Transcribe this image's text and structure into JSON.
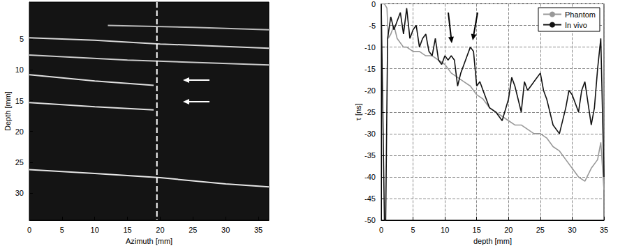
{
  "chart_data": [
    {
      "type": "line",
      "xlabel": "Azimuth [mm]",
      "ylabel": "Depth [mm]",
      "xlim": [
        0,
        36.6
      ],
      "ylim": [
        34.4,
        -1
      ],
      "xticks": [
        0,
        5,
        10,
        15,
        20,
        25,
        30,
        35
      ],
      "yticks": [
        5,
        10,
        15,
        20,
        25,
        30
      ],
      "grid": false,
      "series": [
        {
          "color": "#d8d8d8",
          "line_style": "solid",
          "x": [
            0,
            10,
            20,
            36.6
          ],
          "values": [
            4.8,
            5.2,
            5.8,
            6.5
          ]
        },
        {
          "color": "#bbbbbb",
          "line_style": "solid",
          "x": [
            12,
            25,
            36.6
          ],
          "values": [
            2.8,
            3.1,
            3.5
          ]
        },
        {
          "color": "#cccccc",
          "line_style": "solid",
          "x": [
            0,
            15,
            36.6
          ],
          "values": [
            7.6,
            8.4,
            9.2
          ]
        },
        {
          "color": "#e0e0e0",
          "line_style": "solid",
          "x": [
            0,
            10,
            19
          ],
          "values": [
            10.8,
            11.8,
            12.5
          ]
        },
        {
          "color": "#e0e0e0",
          "line_style": "solid",
          "x": [
            0,
            10,
            19
          ],
          "values": [
            15.3,
            16,
            16.5
          ]
        },
        {
          "color": "#e6e6e6",
          "line_style": "solid",
          "x": [
            0,
            10,
            20,
            30,
            36.6
          ],
          "values": [
            26.2,
            26.8,
            27.5,
            28.5,
            29
          ]
        },
        {
          "color": "#ffffff",
          "line_style": "dashed",
          "x": [
            19.5,
            19.5
          ],
          "values": [
            -1,
            34.4
          ]
        }
      ]
    },
    {
      "type": "line",
      "xlabel": "depth [mm]",
      "ylabel": "τ [ns]",
      "xlim": [
        0,
        35
      ],
      "ylim": [
        -50,
        0
      ],
      "xticks": [
        0,
        5,
        10,
        15,
        20,
        25,
        30,
        35
      ],
      "yticks": [
        -50,
        -45,
        -40,
        -35,
        -30,
        -25,
        -20,
        -15,
        -10,
        -5,
        0
      ],
      "grid": true,
      "legend": "upper right",
      "series": [
        {
          "name": "Phantom",
          "color": "#999999",
          "line_style": "solid",
          "x": [
            0,
            0.5,
            0.9,
            1.1,
            1.5,
            2,
            2.5,
            3,
            3.5,
            4,
            5,
            6,
            7,
            8,
            9,
            10,
            11,
            12,
            13,
            14,
            15,
            16,
            17,
            18,
            19,
            20,
            21,
            22,
            23,
            24,
            25,
            26,
            27,
            28,
            29,
            30,
            31,
            32,
            33,
            34,
            34.5,
            35
          ],
          "values": [
            0,
            0,
            -1,
            -8,
            -7,
            -5,
            -8,
            -9,
            -10,
            -10,
            -11,
            -11,
            -12,
            -12,
            -13,
            -14,
            -16,
            -17,
            -18,
            -19,
            -21,
            -22,
            -24,
            -25,
            -26,
            -27,
            -28,
            -28,
            -29,
            -30,
            -30,
            -31,
            -33,
            -34,
            -36,
            -38,
            -40,
            -41,
            -38,
            -36,
            -32,
            -43
          ]
        },
        {
          "name": "In vivo",
          "color": "#111111",
          "line_style": "solid",
          "x": [
            0,
            0.5,
            0.7,
            1,
            1.5,
            2,
            2.5,
            3,
            3.5,
            4,
            4.5,
            5,
            5.5,
            6,
            6.5,
            7,
            7.5,
            8,
            8.5,
            9,
            9.5,
            10,
            10.5,
            11,
            11.5,
            12,
            12.5,
            13,
            13.5,
            14,
            14.5,
            15,
            15.5,
            16,
            17,
            18,
            19,
            20,
            20.5,
            21,
            22,
            22.5,
            23,
            24,
            25,
            25.5,
            26,
            27,
            28,
            29,
            29.5,
            30,
            31,
            31.5,
            32,
            33,
            33.5,
            34,
            34.5,
            35
          ],
          "values": [
            0,
            -50,
            -50,
            -8,
            -3,
            -6,
            -4,
            -2,
            -7,
            -1,
            -8,
            -6,
            -5,
            -10,
            -8,
            -7,
            -11,
            -12,
            -8,
            -13,
            -14,
            -12,
            -13,
            -12,
            -13,
            -19,
            -16,
            -14,
            -12,
            -10,
            -11,
            -19,
            -18,
            -20,
            -24,
            -25,
            -27,
            -22,
            -17,
            -19,
            -25,
            -18,
            -20,
            -18,
            -16,
            -20,
            -22,
            -28,
            -30,
            -24,
            -20,
            -21,
            -25,
            -20,
            -18,
            -28,
            -24,
            -15,
            -8,
            -40
          ]
        }
      ]
    }
  ]
}
